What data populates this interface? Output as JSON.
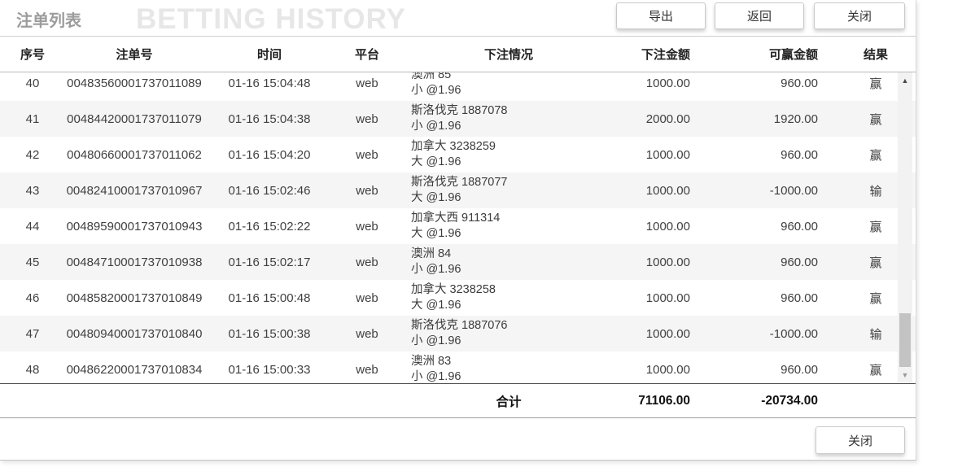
{
  "dialog": {
    "title": "注单列表",
    "watermark": "BETTING HISTORY",
    "toolbar": {
      "export_label": "导出",
      "back_label": "返回",
      "close_label": "关闭"
    },
    "table": {
      "columns": [
        "序号",
        "注单号",
        "时间",
        "平台",
        "下注情况",
        "下注金额",
        "可赢金额",
        "结果"
      ],
      "rows": [
        {
          "no": "40",
          "bet_id": "00483560001737011089",
          "time": "01-16 15:04:48",
          "platform": "web",
          "detail_line1": "澳洲 85",
          "detail_line2": "小 @1.96",
          "amount": "1000.00",
          "win": "960.00",
          "result": "赢"
        },
        {
          "no": "41",
          "bet_id": "00484420001737011079",
          "time": "01-16 15:04:38",
          "platform": "web",
          "detail_line1": "斯洛伐克 1887078",
          "detail_line2": "小 @1.96",
          "amount": "2000.00",
          "win": "1920.00",
          "result": "赢"
        },
        {
          "no": "42",
          "bet_id": "00480660001737011062",
          "time": "01-16 15:04:20",
          "platform": "web",
          "detail_line1": "加拿大 3238259",
          "detail_line2": "大 @1.96",
          "amount": "1000.00",
          "win": "960.00",
          "result": "赢"
        },
        {
          "no": "43",
          "bet_id": "00482410001737010967",
          "time": "01-16 15:02:46",
          "platform": "web",
          "detail_line1": "斯洛伐克 1887077",
          "detail_line2": "大 @1.96",
          "amount": "1000.00",
          "win": "-1000.00",
          "result": "输"
        },
        {
          "no": "44",
          "bet_id": "00489590001737010943",
          "time": "01-16 15:02:22",
          "platform": "web",
          "detail_line1": "加拿大西 911314",
          "detail_line2": "大 @1.96",
          "amount": "1000.00",
          "win": "960.00",
          "result": "赢"
        },
        {
          "no": "45",
          "bet_id": "00484710001737010938",
          "time": "01-16 15:02:17",
          "platform": "web",
          "detail_line1": "澳洲 84",
          "detail_line2": "小 @1.96",
          "amount": "1000.00",
          "win": "960.00",
          "result": "赢"
        },
        {
          "no": "46",
          "bet_id": "00485820001737010849",
          "time": "01-16 15:00:48",
          "platform": "web",
          "detail_line1": "加拿大 3238258",
          "detail_line2": "大 @1.96",
          "amount": "1000.00",
          "win": "960.00",
          "result": "赢"
        },
        {
          "no": "47",
          "bet_id": "00480940001737010840",
          "time": "01-16 15:00:38",
          "platform": "web",
          "detail_line1": "斯洛伐克 1887076",
          "detail_line2": "小 @1.96",
          "amount": "1000.00",
          "win": "-1000.00",
          "result": "输"
        },
        {
          "no": "48",
          "bet_id": "00486220001737010834",
          "time": "01-16 15:00:33",
          "platform": "web",
          "detail_line1": "澳洲 83",
          "detail_line2": "小 @1.96",
          "amount": "1000.00",
          "win": "960.00",
          "result": "赢"
        }
      ],
      "totals": {
        "label": "合计",
        "amount": "71106.00",
        "win": "-20734.00"
      }
    },
    "scrollbar": {
      "up_icon": "▲",
      "down_icon": "▼"
    },
    "footer": {
      "close_label": "关闭"
    },
    "colors": {
      "row_alt": "#f5f5f5",
      "border": "#cfcfcf",
      "title_text": "#9c9c9c",
      "watermark_text": "#e7e7e7",
      "body_text": "#404040",
      "scrollbar_thumb": "#c3c3c3"
    }
  }
}
